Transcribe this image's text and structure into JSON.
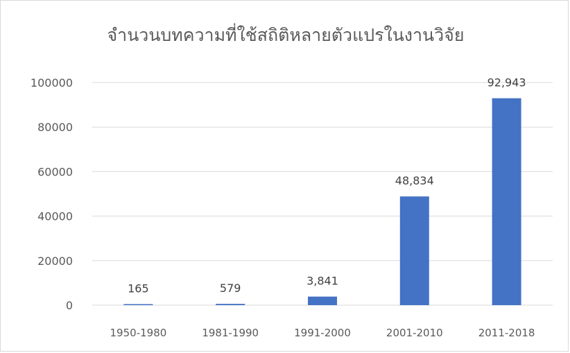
{
  "chart_data": {
    "type": "bar",
    "title": "จำนวนบทความที่ใช้สถิติหลายตัวแปรในงานวิจัย",
    "categories": [
      "1950-1980",
      "1981-1990",
      "1991-2000",
      "2001-2010",
      "2011-2018"
    ],
    "values": [
      165,
      579,
      3841,
      48834,
      92943
    ],
    "data_labels": [
      "165",
      "579",
      "3,841",
      "48,834",
      "92,943"
    ],
    "y_ticks": [
      "0",
      "20000",
      "40000",
      "60000",
      "80000",
      "100000"
    ],
    "ylim": [
      0,
      100000
    ],
    "grid": true,
    "legend": "none",
    "bar_color": "#4472c4",
    "grid_color": "#d9d9d9"
  }
}
